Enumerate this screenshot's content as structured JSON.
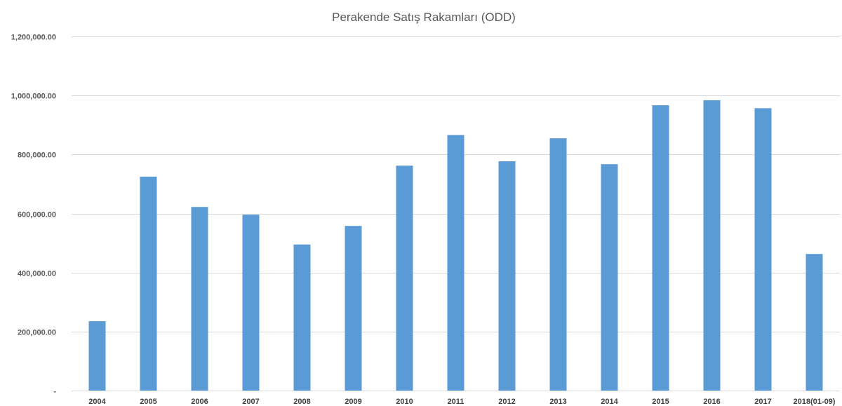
{
  "chart_data": {
    "type": "bar",
    "title": "Perakende Satış Rakamları (ODD)",
    "xlabel": "",
    "ylabel": "",
    "categories": [
      "2004",
      "2005",
      "2006",
      "2007",
      "2008",
      "2009",
      "2010",
      "2011",
      "2012",
      "2013",
      "2014",
      "2015",
      "2016",
      "2017",
      "2018(01-09)"
    ],
    "values": [
      235000,
      725000,
      622000,
      596000,
      495000,
      558000,
      762000,
      866000,
      777000,
      855000,
      767000,
      967000,
      984000,
      957000,
      463000
    ],
    "ylim": [
      0,
      1200000
    ],
    "yticks": [
      0,
      200000,
      400000,
      600000,
      800000,
      1000000,
      1200000
    ],
    "ytick_labels": [
      "-",
      "200,000.00",
      "400,000.00",
      "600,000.00",
      "800,000.00",
      "1,000,000.00",
      "1,200,000.00"
    ],
    "grid": true,
    "legend": "none",
    "bar_color": "#5b9bd5",
    "grid_color": "#d9d9d9"
  }
}
